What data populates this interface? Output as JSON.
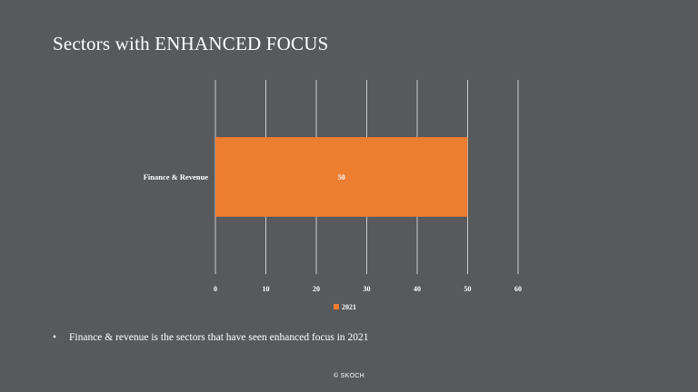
{
  "slide": {
    "title": "Sectors with ENHANCED FOCUS",
    "bullet_marker": "•",
    "bullet": "Finance & revenue is the sectors that have seen enhanced focus in 2021",
    "footer": "© SKOCH"
  },
  "colors": {
    "background": "#58595b",
    "bar": "#ed7d31",
    "gridline": "#d9d9d9",
    "text": "#ffffff"
  },
  "chart_data": {
    "type": "bar",
    "orientation": "horizontal",
    "title": "",
    "xlabel": "",
    "ylabel": "",
    "categories": [
      "Finance & Revenue"
    ],
    "series": [
      {
        "name": "2021",
        "values": [
          50
        ],
        "color": "#ed7d31"
      }
    ],
    "xlim": [
      0,
      60
    ],
    "x_ticks": [
      0,
      10,
      20,
      30,
      40,
      50,
      60
    ],
    "data_labels": true,
    "grid": true,
    "legend_position": "bottom"
  }
}
